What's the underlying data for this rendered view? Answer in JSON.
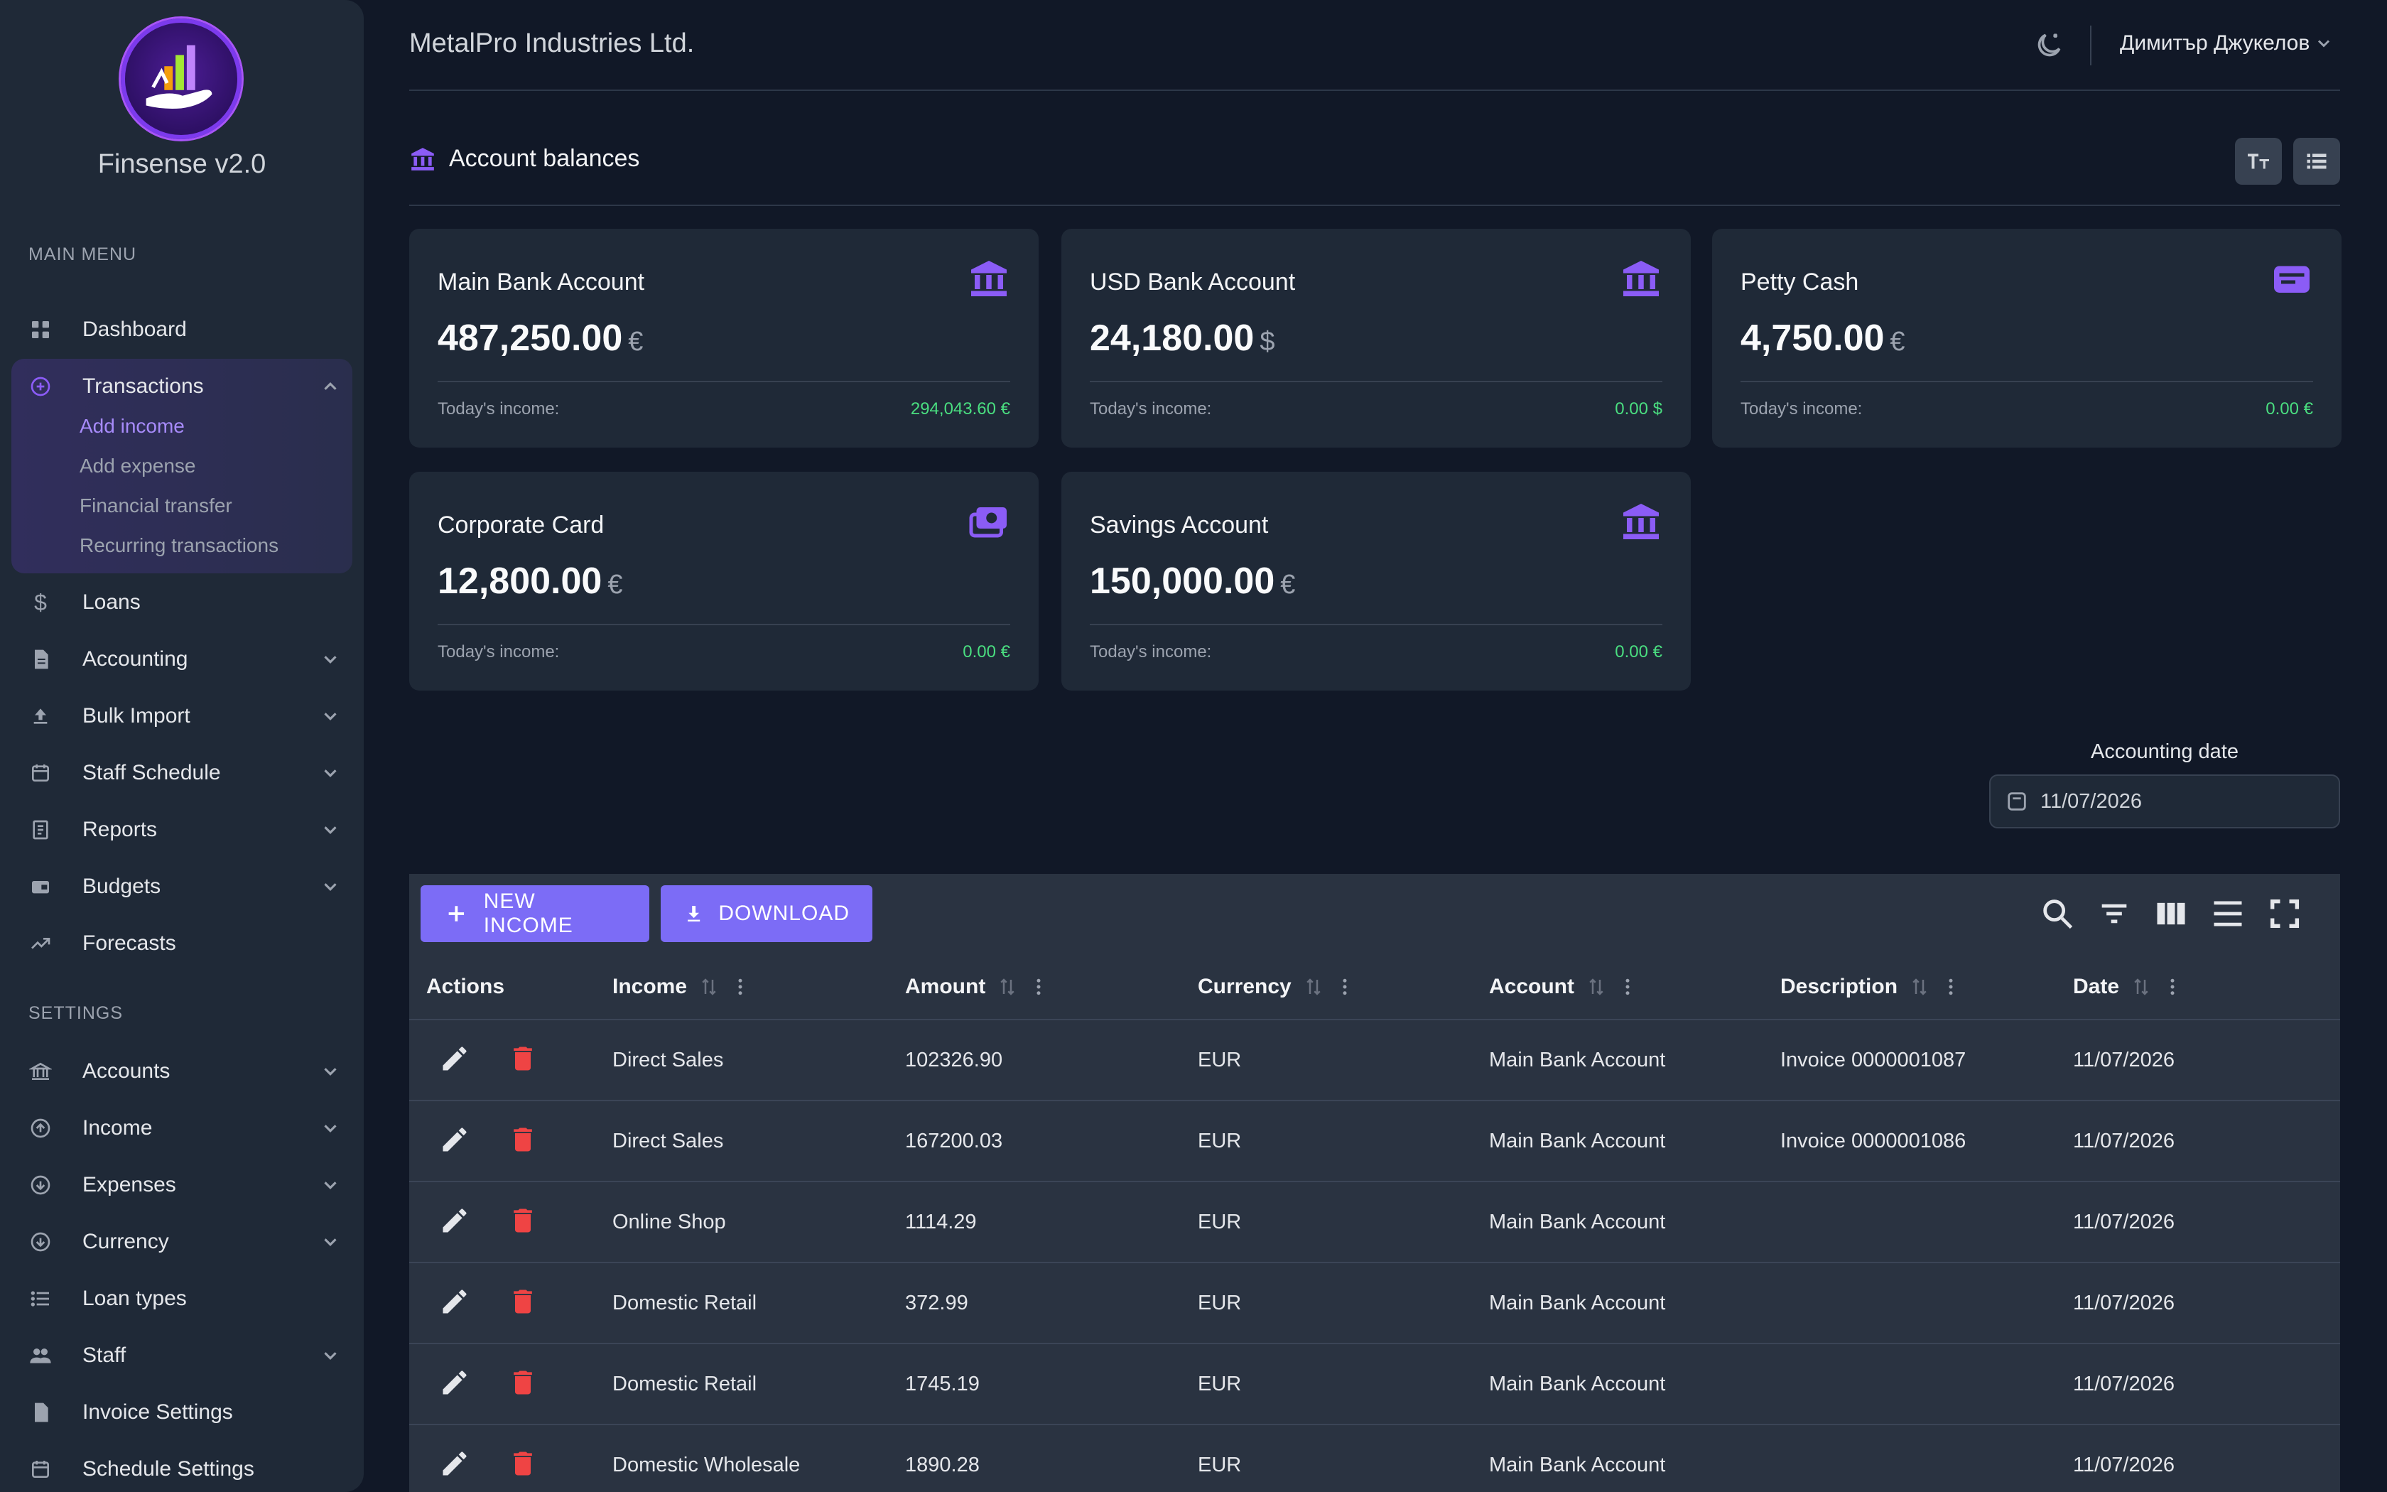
{
  "app": {
    "title": "Finsense v2.0"
  },
  "sidebar": {
    "main_menu_label": "MAIN MENU",
    "settings_label": "SETTINGS",
    "items": [
      {
        "label": "Dashboard",
        "icon": "grid-icon"
      },
      {
        "label": "Transactions",
        "icon": "plus-circle-icon",
        "expanded": true,
        "children": [
          "Add income",
          "Add expense",
          "Financial transfer",
          "Recurring transactions"
        ],
        "active_child": "Add income"
      },
      {
        "label": "Loans",
        "icon": "dollar-icon"
      },
      {
        "label": "Accounting",
        "icon": "document-icon"
      },
      {
        "label": "Bulk Import",
        "icon": "upload-icon"
      },
      {
        "label": "Staff Schedule",
        "icon": "calendar-icon"
      },
      {
        "label": "Reports",
        "icon": "report-icon"
      },
      {
        "label": "Budgets",
        "icon": "wallet-icon"
      },
      {
        "label": "Forecasts",
        "icon": "trend-icon"
      }
    ],
    "settings_items": [
      {
        "label": "Accounts",
        "icon": "bank-icon"
      },
      {
        "label": "Income",
        "icon": "arrow-up-circle-icon"
      },
      {
        "label": "Expenses",
        "icon": "arrow-down-circle-icon"
      },
      {
        "label": "Currency",
        "icon": "arrow-down-circle-icon"
      },
      {
        "label": "Loan types",
        "icon": "list-icon"
      },
      {
        "label": "Staff",
        "icon": "people-icon"
      },
      {
        "label": "Invoice Settings",
        "icon": "invoice-icon"
      },
      {
        "label": "Schedule Settings",
        "icon": "calendar-icon"
      }
    ]
  },
  "header": {
    "company": "MetalPro Industries Ltd.",
    "user": "Димитър Джукелов",
    "theme_icon": "moon-icon"
  },
  "balances": {
    "title": "Account balances",
    "income_label": "Today's income:",
    "cards": [
      {
        "name": "Main Bank Account",
        "amount": "487,250.00",
        "currency": "€",
        "today": "294,043.60 €",
        "icon": "bank-icon"
      },
      {
        "name": "USD Bank Account",
        "amount": "24,180.00",
        "currency": "$",
        "today": "0.00 $",
        "icon": "bank-icon"
      },
      {
        "name": "Petty Cash",
        "amount": "4,750.00",
        "currency": "€",
        "today": "0.00 €",
        "icon": "wallet-icon"
      },
      {
        "name": "Corporate Card",
        "amount": "12,800.00",
        "currency": "€",
        "today": "0.00 €",
        "icon": "cash-icon"
      },
      {
        "name": "Savings Account",
        "amount": "150,000.00",
        "currency": "€",
        "today": "0.00 €",
        "icon": "bank-icon"
      }
    ]
  },
  "accounting_date": {
    "label": "Accounting date",
    "value": "11/07/2026"
  },
  "table": {
    "new_income_label": "NEW INCOME",
    "download_label": "DOWNLOAD",
    "columns": [
      "Actions",
      "Income",
      "Amount",
      "Currency",
      "Account",
      "Description",
      "Date"
    ],
    "rows": [
      {
        "income": "Direct Sales",
        "amount": "102326.90",
        "currency": "EUR",
        "account": "Main Bank Account",
        "description": "Invoice 0000001087",
        "date": "11/07/2026"
      },
      {
        "income": "Direct Sales",
        "amount": "167200.03",
        "currency": "EUR",
        "account": "Main Bank Account",
        "description": "Invoice 0000001086",
        "date": "11/07/2026"
      },
      {
        "income": "Online Shop",
        "amount": "1114.29",
        "currency": "EUR",
        "account": "Main Bank Account",
        "description": "",
        "date": "11/07/2026"
      },
      {
        "income": "Domestic Retail",
        "amount": "372.99",
        "currency": "EUR",
        "account": "Main Bank Account",
        "description": "",
        "date": "11/07/2026"
      },
      {
        "income": "Domestic Retail",
        "amount": "1745.19",
        "currency": "EUR",
        "account": "Main Bank Account",
        "description": "",
        "date": "11/07/2026"
      },
      {
        "income": "Domestic Wholesale",
        "amount": "1890.28",
        "currency": "EUR",
        "account": "Main Bank Account",
        "description": "",
        "date": "11/07/2026"
      }
    ]
  },
  "colors": {
    "accent": "#7c6cf6",
    "positive": "#4ade80",
    "danger": "#ef4444",
    "bg": "#111827",
    "surface": "#1f2937"
  }
}
